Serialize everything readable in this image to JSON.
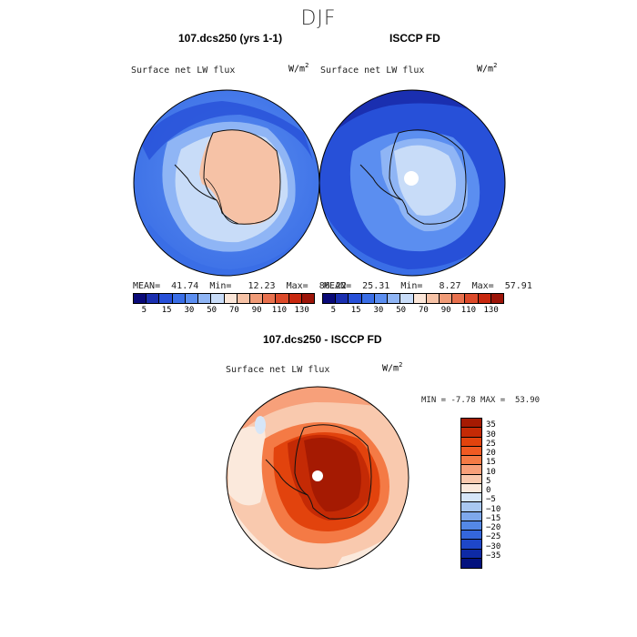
{
  "figure": {
    "season": "DJF"
  },
  "panel_left": {
    "title": "107.dcs250 (yrs 1-1)",
    "variable": "Surface net LW flux",
    "units_base": "W/m",
    "units_exp": "2",
    "mean_label": "MEAN=",
    "mean": "41.74",
    "min_label": "Min=",
    "min": "12.23",
    "max_label": "Max=",
    "max": "86.22"
  },
  "panel_right": {
    "title": "ISCCP FD",
    "variable": "Surface net LW flux",
    "units_base": "W/m",
    "units_exp": "2",
    "mean_label": "MEAN=",
    "mean": "25.31",
    "min_label": "Min=",
    "min": "8.27",
    "max_label": "Max=",
    "max": "57.91"
  },
  "panel_diff": {
    "title": "107.dcs250 - ISCCP FD",
    "variable": "Surface net LW flux",
    "units_base": "W/m",
    "units_exp": "2",
    "min_label": "MIN =",
    "min": "-7.78",
    "max_label": "MAX =",
    "max": "53.90"
  },
  "colorbar_abs": {
    "colors": [
      "#0a0a78",
      "#1a2fb0",
      "#2750d8",
      "#3a6ee6",
      "#5b8ef0",
      "#8fb5f5",
      "#c8dcf8",
      "#fbe6d8",
      "#f6c2a6",
      "#f09b77",
      "#e8714e",
      "#dc4a2a",
      "#c8280f",
      "#9c1408"
    ],
    "tick_labels": [
      "5",
      "15",
      "30",
      "50",
      "70",
      "90",
      "110",
      "130"
    ]
  },
  "colorbar_diff": {
    "colors": [
      "#a51a02",
      "#c42a05",
      "#e2430d",
      "#f05a22",
      "#f47a45",
      "#f7a07a",
      "#f9c9ae",
      "#fbe9dc",
      "#d6e6f8",
      "#a9c8f1",
      "#7ea8ec",
      "#5488e6",
      "#3466dc",
      "#1e47c8",
      "#0e2aa5",
      "#04127e"
    ],
    "tick_labels": [
      "35",
      "30",
      "25",
      "20",
      "15",
      "10",
      "5",
      "0",
      "−5",
      "−10",
      "−15",
      "−20",
      "−25",
      "−30",
      "−35"
    ]
  }
}
